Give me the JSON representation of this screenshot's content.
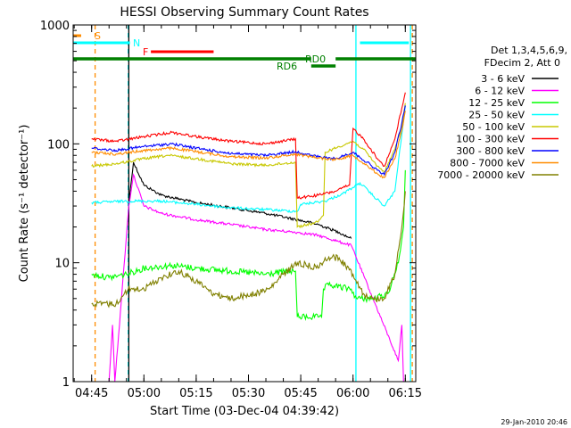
{
  "chart_data": {
    "type": "line",
    "title": "HESSI Observing Summary Count Rates",
    "xlabel": "Start Time (03-Dec-04 04:39:42)",
    "ylabel": "Count Rate (s⁻¹ detector⁻¹)",
    "y_scale": "log",
    "ylim": [
      1,
      1000
    ],
    "xlim": [
      "04:39:42",
      "06:18:00"
    ],
    "y_ticks": [
      "1",
      "10",
      "100",
      "1000"
    ],
    "x_ticks": [
      "04:45",
      "05:00",
      "05:15",
      "05:30",
      "05:45",
      "06:00",
      "06:15"
    ],
    "timestamp": "29-Jan-2010 20:46",
    "legend": {
      "placement": "right",
      "header_lines": [
        "Det 1,3,4,5,6,9,",
        "FDecim 2, Att 0"
      ],
      "entries": [
        {
          "label": "3 - 6 keV",
          "color": "#000000"
        },
        {
          "label": "6 - 12 keV",
          "color": "#ff00ff"
        },
        {
          "label": "12 - 25 keV",
          "color": "#00ff00"
        },
        {
          "label": "25 - 50 keV",
          "color": "#00ffff"
        },
        {
          "label": "50 - 100 keV",
          "color": "#c8c800"
        },
        {
          "label": "100 - 300 keV",
          "color": "#ff0000"
        },
        {
          "label": "300 - 800 keV",
          "color": "#0000ff"
        },
        {
          "label": "800 - 7000 keV",
          "color": "#ff8c00"
        },
        {
          "label": "7000 - 20000 keV",
          "color": "#808000"
        }
      ]
    },
    "flags": [
      {
        "label": "S",
        "color": "#ff8c00",
        "segments": [
          [
            "04:39:42",
            "04:42:00"
          ]
        ]
      },
      {
        "label": "N",
        "color": "#00ffff",
        "segments": [
          [
            "04:39:42",
            "04:56:00"
          ],
          [
            "06:02:00",
            "06:16:00"
          ]
        ]
      },
      {
        "label": "F",
        "color": "#ff0000",
        "segments": [
          [
            "05:02:00",
            "05:20:00"
          ]
        ]
      },
      {
        "label": "RD0",
        "color": "#008000",
        "segments": [
          [
            "04:39:42",
            "05:48:00"
          ],
          [
            "05:55:00",
            "06:18:00"
          ]
        ]
      },
      {
        "label": "RD6",
        "color": "#008000",
        "segments": [
          [
            "05:48:00",
            "05:55:00"
          ]
        ]
      }
    ],
    "vlines": [
      {
        "x": "04:46:00",
        "color": "#ff8c00",
        "style": "dashed"
      },
      {
        "x": "04:55:30",
        "color": "#00ffff",
        "style": "dashed"
      },
      {
        "x": "04:55:40",
        "color": "#000000",
        "style": "solid"
      },
      {
        "x": "06:00:50",
        "color": "#00ffff",
        "style": "solid"
      },
      {
        "x": "06:16:30",
        "color": "#00ffff",
        "style": "solid"
      },
      {
        "x": "06:17:00",
        "color": "#ff8c00",
        "style": "dashed"
      }
    ],
    "series": [
      {
        "name": "3 - 6 keV",
        "color": "#000000",
        "points": [
          [
            "04:55:40",
            32
          ],
          [
            "04:57:00",
            70
          ],
          [
            "05:00:00",
            45
          ],
          [
            "05:05:00",
            37
          ],
          [
            "05:15:00",
            32
          ],
          [
            "05:25:00",
            29
          ],
          [
            "05:35:00",
            26
          ],
          [
            "05:44:00",
            23
          ],
          [
            "05:50:00",
            21
          ],
          [
            "05:56:00",
            18
          ],
          [
            "05:59:30",
            16
          ]
        ]
      },
      {
        "name": "6 - 12 keV",
        "color": "#ff00ff",
        "points": [
          [
            "04:50:00",
            1
          ],
          [
            "04:51:00",
            3
          ],
          [
            "04:51:40",
            1
          ],
          [
            "04:55:40",
            30
          ],
          [
            "04:57:00",
            55
          ],
          [
            "05:00:00",
            30
          ],
          [
            "05:05:00",
            26
          ],
          [
            "05:15:00",
            23
          ],
          [
            "05:25:00",
            21
          ],
          [
            "05:35:00",
            19
          ],
          [
            "05:44:00",
            18
          ],
          [
            "05:50:00",
            17
          ],
          [
            "05:56:00",
            15
          ],
          [
            "05:59:30",
            14
          ],
          [
            "06:13:00",
            1.5
          ],
          [
            "06:14:00",
            3
          ],
          [
            "06:14:30",
            1
          ]
        ]
      },
      {
        "name": "12 - 25 keV",
        "color": "#00ff00",
        "points": [
          [
            "04:45:00",
            8
          ],
          [
            "04:50:00",
            7.5
          ],
          [
            "04:55:00",
            8
          ],
          [
            "05:00:00",
            9
          ],
          [
            "05:08:00",
            9.5
          ],
          [
            "05:15:00",
            9
          ],
          [
            "05:25:00",
            8.5
          ],
          [
            "05:35:00",
            8
          ],
          [
            "05:42:00",
            8.5
          ],
          [
            "05:43:30",
            8.5
          ],
          [
            "05:44:00",
            3.5
          ],
          [
            "05:50:00",
            3.5
          ],
          [
            "05:51:00",
            3.5
          ],
          [
            "05:51:30",
            6
          ],
          [
            "05:53:00",
            6.5
          ],
          [
            "05:59:30",
            6
          ],
          [
            "06:01:00",
            5
          ],
          [
            "06:06:00",
            5
          ],
          [
            "06:10:00",
            5.5
          ],
          [
            "06:13:00",
            10
          ],
          [
            "06:14:30",
            20
          ],
          [
            "06:15:00",
            60
          ]
        ]
      },
      {
        "name": "25 - 50 keV",
        "color": "#00ffff",
        "points": [
          [
            "04:45:00",
            32
          ],
          [
            "04:55:00",
            33
          ],
          [
            "05:05:00",
            33
          ],
          [
            "05:15:00",
            31
          ],
          [
            "05:25:00",
            29
          ],
          [
            "05:35:00",
            28
          ],
          [
            "05:44:00",
            27
          ],
          [
            "05:45:00",
            31
          ],
          [
            "05:52:00",
            33
          ],
          [
            "05:57:00",
            38
          ],
          [
            "06:00:00",
            43
          ],
          [
            "06:02:00",
            47
          ],
          [
            "06:06:00",
            36
          ],
          [
            "06:08:00",
            32
          ],
          [
            "06:09:00",
            30
          ],
          [
            "06:12:00",
            40
          ],
          [
            "06:14:00",
            120
          ],
          [
            "06:15:00",
            210
          ]
        ]
      },
      {
        "name": "50 - 100 keV",
        "color": "#c8c800",
        "points": [
          [
            "04:45:00",
            65
          ],
          [
            "04:52:00",
            68
          ],
          [
            "05:00:00",
            75
          ],
          [
            "05:07:00",
            80
          ],
          [
            "05:15:00",
            75
          ],
          [
            "05:25:00",
            68
          ],
          [
            "05:35:00",
            66
          ],
          [
            "05:43:30",
            70
          ],
          [
            "05:44:00",
            20
          ],
          [
            "05:50:00",
            22
          ],
          [
            "05:51:30",
            25
          ],
          [
            "05:52:00",
            85
          ],
          [
            "05:56:00",
            95
          ],
          [
            "06:00:00",
            105
          ],
          [
            "06:03:00",
            90
          ],
          [
            "06:07:00",
            65
          ],
          [
            "06:09:00",
            58
          ],
          [
            "06:12:00",
            90
          ],
          [
            "06:14:00",
            140
          ],
          [
            "06:15:00",
            220
          ]
        ]
      },
      {
        "name": "100 - 300 keV",
        "color": "#ff0000",
        "points": [
          [
            "04:45:00",
            110
          ],
          [
            "04:52:00",
            105
          ],
          [
            "05:00:00",
            115
          ],
          [
            "05:08:00",
            125
          ],
          [
            "05:15:00",
            115
          ],
          [
            "05:25:00",
            105
          ],
          [
            "05:35:00",
            100
          ],
          [
            "05:43:30",
            110
          ],
          [
            "05:44:00",
            35
          ],
          [
            "05:50:00",
            37
          ],
          [
            "05:55:00",
            40
          ],
          [
            "05:59:00",
            45
          ],
          [
            "06:00:00",
            135
          ],
          [
            "06:03:00",
            110
          ],
          [
            "06:07:00",
            75
          ],
          [
            "06:09:00",
            65
          ],
          [
            "06:12:00",
            110
          ],
          [
            "06:14:00",
            200
          ],
          [
            "06:15:00",
            270
          ]
        ]
      },
      {
        "name": "300 - 800 keV",
        "color": "#0000ff",
        "points": [
          [
            "04:45:00",
            92
          ],
          [
            "04:52:00",
            88
          ],
          [
            "05:00:00",
            95
          ],
          [
            "05:08:00",
            100
          ],
          [
            "05:15:00",
            92
          ],
          [
            "05:25:00",
            83
          ],
          [
            "05:35:00",
            80
          ],
          [
            "05:43:30",
            86
          ],
          [
            "05:48:00",
            80
          ],
          [
            "05:52:00",
            76
          ],
          [
            "05:55:00",
            75
          ],
          [
            "06:00:00",
            85
          ],
          [
            "06:04:00",
            70
          ],
          [
            "06:07:00",
            60
          ],
          [
            "06:09:00",
            55
          ],
          [
            "06:12:00",
            85
          ],
          [
            "06:14:00",
            150
          ],
          [
            "06:15:00",
            210
          ]
        ]
      },
      {
        "name": "800 - 7000 keV",
        "color": "#ff8c00",
        "points": [
          [
            "04:45:00",
            85
          ],
          [
            "04:52:00",
            82
          ],
          [
            "05:00:00",
            88
          ],
          [
            "05:08:00",
            92
          ],
          [
            "05:15:00",
            86
          ],
          [
            "05:25:00",
            78
          ],
          [
            "05:35:00",
            76
          ],
          [
            "05:43:30",
            82
          ],
          [
            "05:48:00",
            78
          ],
          [
            "05:52:00",
            75
          ],
          [
            "05:55:00",
            74
          ],
          [
            "06:00:00",
            80
          ],
          [
            "06:04:00",
            66
          ],
          [
            "06:07:00",
            56
          ],
          [
            "06:09:00",
            52
          ],
          [
            "06:12:00",
            75
          ],
          [
            "06:14:00",
            130
          ],
          [
            "06:15:00",
            190
          ]
        ]
      },
      {
        "name": "7000 - 20000 keV",
        "color": "#808000",
        "points": [
          [
            "04:45:00",
            4.5
          ],
          [
            "04:52:00",
            4.5
          ],
          [
            "04:55:30",
            6
          ],
          [
            "05:00:00",
            6
          ],
          [
            "05:05:00",
            7.5
          ],
          [
            "05:10:00",
            8.5
          ],
          [
            "05:15:00",
            7
          ],
          [
            "05:20:00",
            5.5
          ],
          [
            "05:25:00",
            5
          ],
          [
            "05:32:00",
            5.5
          ],
          [
            "05:36:00",
            6
          ],
          [
            "05:40:00",
            8
          ],
          [
            "05:44:00",
            10
          ],
          [
            "05:50:00",
            9
          ],
          [
            "05:52:00",
            11
          ],
          [
            "05:56:00",
            11
          ],
          [
            "06:00:00",
            8
          ],
          [
            "06:03:00",
            5.5
          ],
          [
            "06:05:00",
            5
          ],
          [
            "06:09:00",
            5
          ],
          [
            "06:12:00",
            8
          ],
          [
            "06:14:00",
            20
          ],
          [
            "06:15:00",
            40
          ]
        ]
      }
    ]
  }
}
